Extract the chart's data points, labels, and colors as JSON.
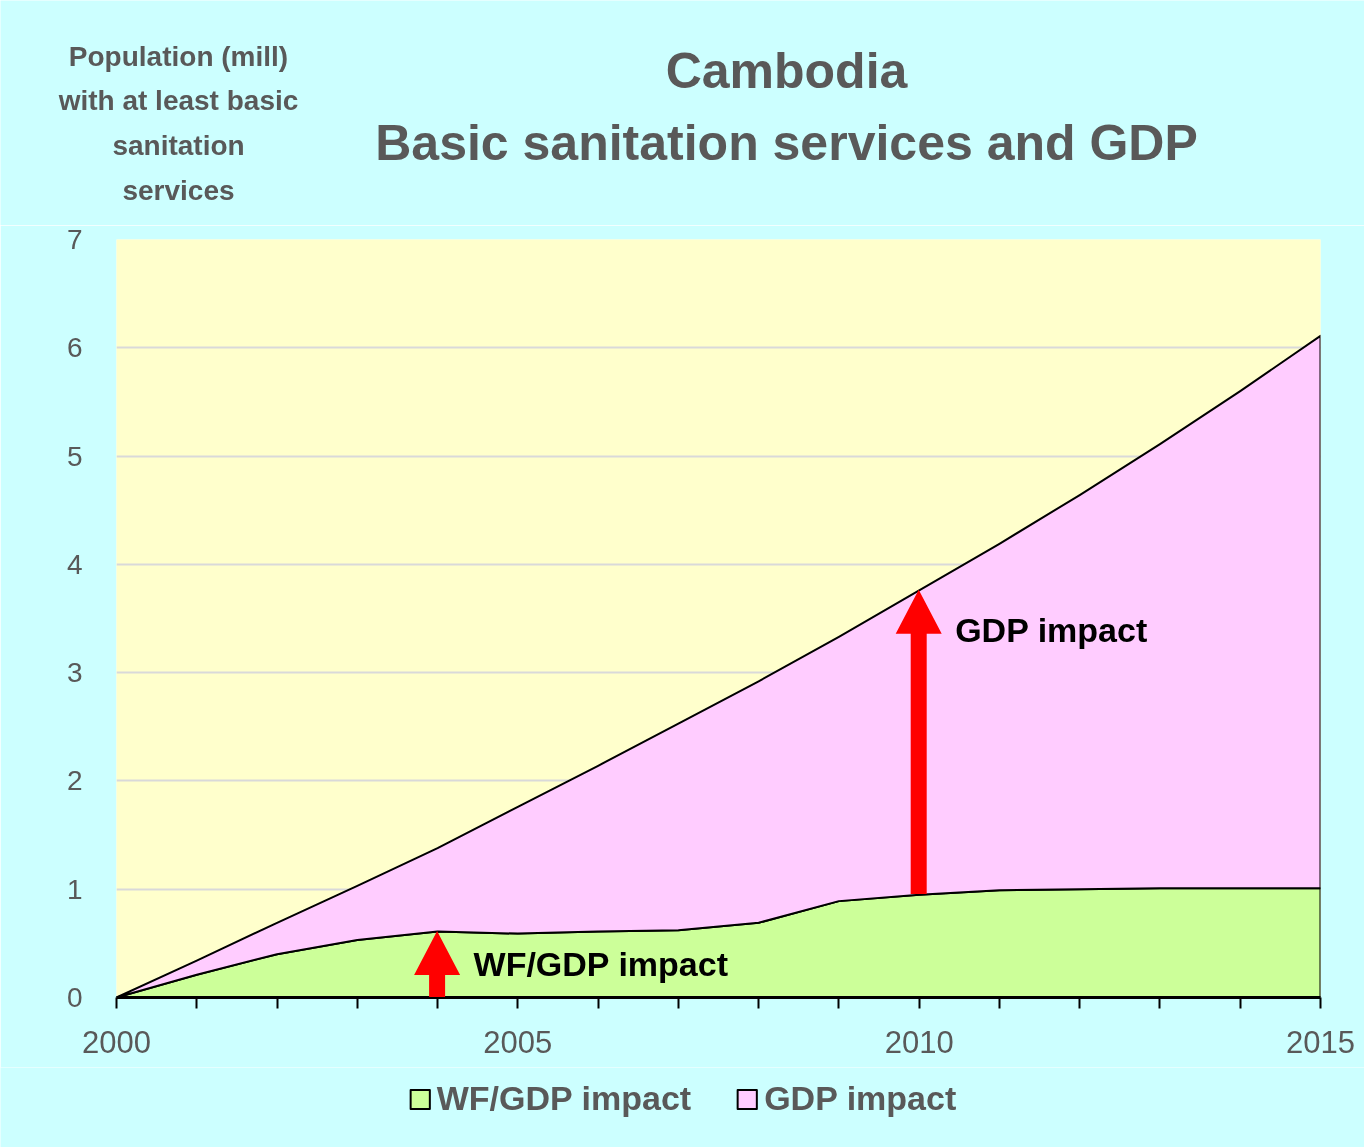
{
  "chart_data": {
    "type": "area",
    "title": "Cambodia",
    "subtitle": "Basic sanitation services and GDP",
    "ylabel": "Population (mill)\nwith at least basic\nsanitation\nservices",
    "x": [
      2000,
      2001,
      2002,
      2003,
      2004,
      2005,
      2006,
      2007,
      2008,
      2009,
      2010,
      2011,
      2012,
      2013,
      2014,
      2015
    ],
    "stacked": true,
    "series": [
      {
        "name": "WF/GDP impact",
        "color": "#ccff99",
        "values": [
          0,
          0.21,
          0.4,
          0.53,
          0.61,
          0.59,
          0.61,
          0.62,
          0.69,
          0.89,
          0.95,
          0.99,
          1.0,
          1.01,
          1.01,
          1.01
        ]
      },
      {
        "name": "GDP impact",
        "color": "#ffccff",
        "values": [
          0,
          0.13,
          0.29,
          0.5,
          0.77,
          1.17,
          1.53,
          1.91,
          2.23,
          2.44,
          2.81,
          3.2,
          3.64,
          4.1,
          4.59,
          5.1
        ]
      }
    ],
    "xlim": [
      2000,
      2015
    ],
    "ylim": [
      0,
      7
    ],
    "xticks": [
      2000,
      {
        "value": 2001,
        "label": null
      },
      {
        "value": 2002,
        "label": null
      },
      {
        "value": 2003,
        "label": null
      },
      {
        "value": 2004,
        "label": null
      },
      2005,
      {
        "value": 2006,
        "label": null
      },
      {
        "value": 2007,
        "label": null
      },
      {
        "value": 2008,
        "label": null
      },
      {
        "value": 2009,
        "label": null
      },
      2010,
      {
        "value": 2011,
        "label": null
      },
      {
        "value": 2012,
        "label": null
      },
      {
        "value": 2013,
        "label": null
      },
      {
        "value": 2014,
        "label": null
      },
      2015
    ],
    "yticks": [
      0,
      1,
      2,
      3,
      4,
      5,
      6,
      7
    ],
    "grid": "y",
    "legend": "bottom",
    "annotations": [
      {
        "text": "WF/GDP impact",
        "x": 2004,
        "y": 0.61
      },
      {
        "text": "GDP impact",
        "x": 2010,
        "y": 3.76
      }
    ]
  }
}
